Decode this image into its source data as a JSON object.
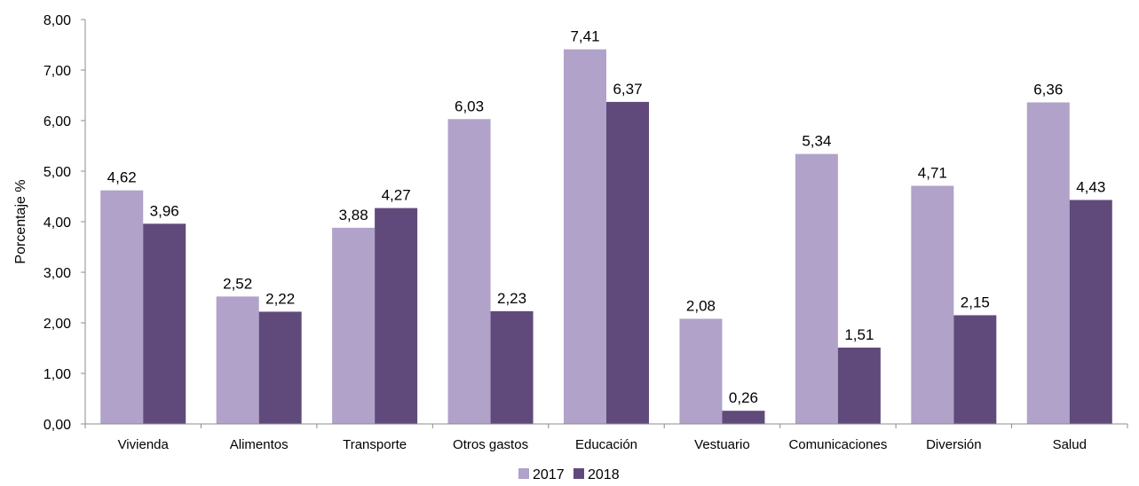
{
  "chart_data": {
    "type": "bar",
    "categories": [
      "Vivienda",
      "Alimentos",
      "Transporte",
      "Otros gastos",
      "Educación",
      "Vestuario",
      "Comunicaciones",
      "Diversión",
      "Salud"
    ],
    "series": [
      {
        "name": "2017",
        "color": "#b0a2c8",
        "values": [
          4.62,
          2.52,
          3.88,
          6.03,
          7.41,
          2.08,
          5.34,
          4.71,
          6.36
        ],
        "labels": [
          "4,62",
          "2,52",
          "3,88",
          "6,03",
          "7,41",
          "2,08",
          "5,34",
          "4,71",
          "6,36"
        ]
      },
      {
        "name": "2018",
        "color": "#604a7b",
        "values": [
          3.96,
          2.22,
          4.27,
          2.23,
          6.37,
          0.26,
          1.51,
          2.15,
          4.43
        ],
        "labels": [
          "3,96",
          "2,22",
          "4,27",
          "2,23",
          "6,37",
          "0,26",
          "1,51",
          "2,15",
          "4,43"
        ]
      }
    ],
    "ylabel": "Porcentaje %",
    "ylim": [
      0,
      8
    ],
    "yticks": [
      "0,00",
      "1,00",
      "2,00",
      "3,00",
      "4,00",
      "5,00",
      "6,00",
      "7,00",
      "8,00"
    ],
    "grid": false,
    "legend": "bottom-center"
  }
}
